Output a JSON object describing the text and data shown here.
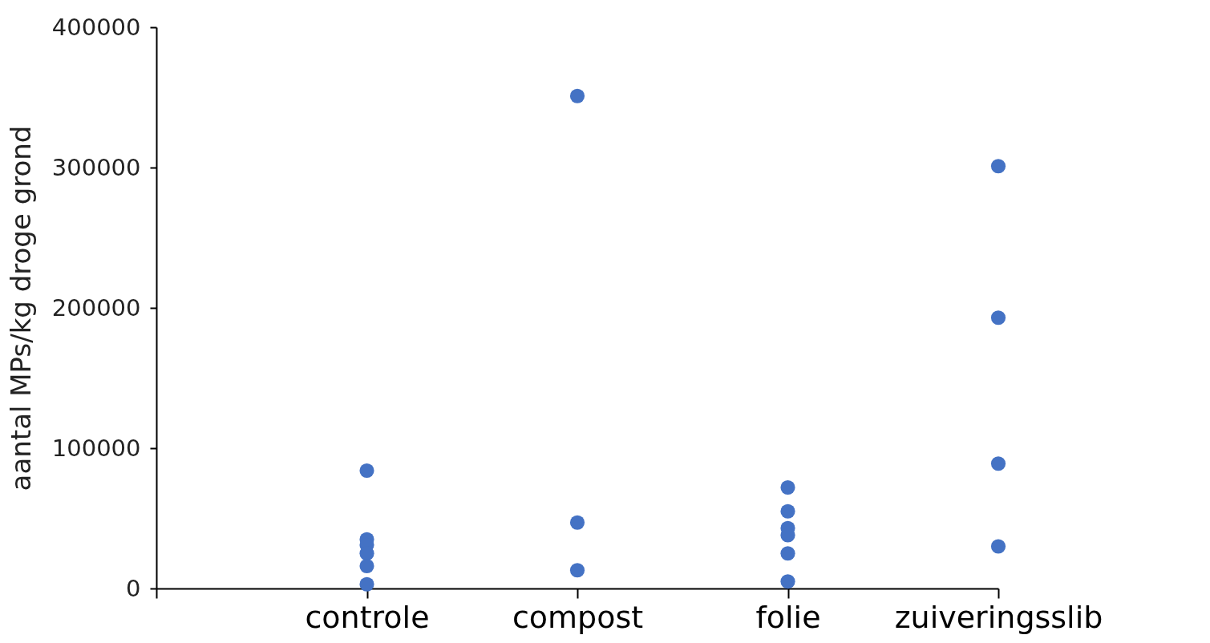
{
  "chart_data": {
    "type": "scatter",
    "ylabel": "aantal MPs/kg droge grond",
    "categories": [
      null,
      "controle",
      "compost",
      "folie",
      "zuiveringsslib"
    ],
    "ylim": [
      0,
      400000
    ],
    "yticks": [
      0,
      100000,
      200000,
      300000,
      400000
    ],
    "series": [
      {
        "color": "#4472c4",
        "x": [
          "controle",
          "controle",
          "controle",
          "controle",
          "controle",
          "controle",
          "compost",
          "compost",
          "compost",
          "folie",
          "folie",
          "folie",
          "folie",
          "folie",
          "folie",
          "zuiveringsslib",
          "zuiveringsslib",
          "zuiveringsslib",
          "zuiveringsslib"
        ],
        "values": [
          84000,
          35000,
          31000,
          25000,
          16000,
          3000,
          351000,
          47000,
          13000,
          72000,
          55000,
          43000,
          38000,
          25000,
          5000,
          301000,
          193000,
          89000,
          30000
        ]
      }
    ],
    "marker": "circle",
    "grid": false,
    "legend": false
  }
}
